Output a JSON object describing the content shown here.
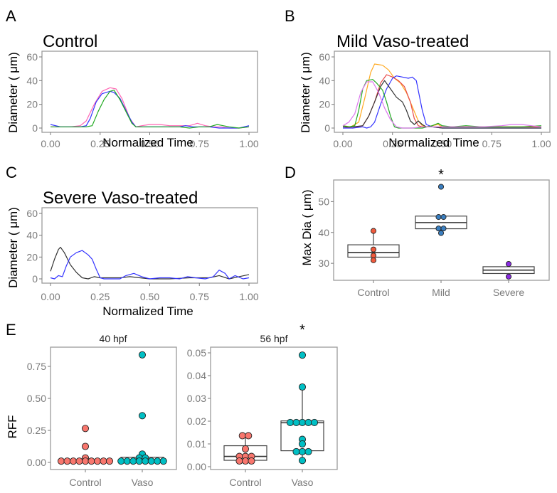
{
  "chart_data": [
    {
      "panel": "A",
      "type": "line",
      "title": "Control",
      "xlabel": "Normalized Time",
      "ylabel": "Diameter ( μm)",
      "xlim": [
        0,
        1
      ],
      "ylim": [
        0,
        60
      ],
      "xticks": [
        "0.00",
        "0.25",
        "0.50",
        "0.75",
        "1.00"
      ],
      "yticks": [
        "0",
        "20",
        "40",
        "60"
      ],
      "grid": false,
      "series": [
        {
          "name": "pink",
          "color": "#ff66b3",
          "x": [
            0,
            0.05,
            0.1,
            0.15,
            0.18,
            0.22,
            0.26,
            0.3,
            0.33,
            0.36,
            0.4,
            0.43,
            0.46,
            0.5,
            0.55,
            0.6,
            0.65,
            0.7,
            0.74,
            0.78,
            0.82,
            0.86,
            0.9,
            0.95,
            1.0
          ],
          "y": [
            1,
            1,
            1,
            2,
            6,
            20,
            31,
            34,
            33,
            25,
            8,
            1,
            2,
            3,
            3,
            2,
            2,
            2,
            4,
            2,
            1,
            1,
            0,
            0,
            1
          ]
        },
        {
          "name": "blue",
          "color": "#3333ff",
          "x": [
            0,
            0.05,
            0.1,
            0.15,
            0.18,
            0.2,
            0.23,
            0.26,
            0.3,
            0.32,
            0.35,
            0.38,
            0.41,
            0.43,
            0.46,
            0.5,
            0.55,
            0.6,
            0.65,
            0.68,
            0.72,
            0.76,
            0.8,
            0.85,
            0.9,
            0.95,
            1.0
          ],
          "y": [
            3,
            1,
            1,
            1,
            2,
            8,
            22,
            29,
            31,
            30,
            25,
            15,
            5,
            1,
            1,
            1,
            1,
            1,
            1,
            2,
            1,
            1,
            1,
            0,
            0,
            0,
            2
          ]
        },
        {
          "name": "green",
          "color": "#22aa22",
          "x": [
            0,
            0.05,
            0.1,
            0.15,
            0.18,
            0.21,
            0.24,
            0.27,
            0.3,
            0.32,
            0.35,
            0.38,
            0.41,
            0.43,
            0.46,
            0.5,
            0.55,
            0.6,
            0.65,
            0.7,
            0.75,
            0.8,
            0.84,
            0.87,
            0.9,
            0.95,
            1.0
          ],
          "y": [
            1,
            1,
            1,
            1,
            1,
            2,
            14,
            24,
            31,
            32,
            24,
            14,
            4,
            1,
            1,
            1,
            1,
            1,
            1,
            0,
            1,
            1,
            3,
            2,
            1,
            0,
            1
          ]
        }
      ]
    },
    {
      "panel": "B",
      "type": "line",
      "title": "Mild Vaso-treated",
      "xlabel": "Normalized Time",
      "ylabel": "Diameter ( μm)",
      "xlim": [
        0,
        1
      ],
      "ylim": [
        0,
        60
      ],
      "xticks": [
        "0.00",
        "0.25",
        "0.50",
        "0.75",
        "1.00"
      ],
      "yticks": [
        "0",
        "20",
        "40",
        "60"
      ],
      "grid": false,
      "series": [
        {
          "name": "orange",
          "color": "#ffaa22",
          "x": [
            0,
            0.04,
            0.08,
            0.11,
            0.14,
            0.16,
            0.2,
            0.23,
            0.26,
            0.29,
            0.32,
            0.35,
            0.38,
            0.4,
            0.42,
            0.45,
            0.48,
            0.5,
            0.55,
            0.6,
            0.7,
            0.8,
            0.9,
            1.0
          ],
          "y": [
            2,
            1,
            5,
            25,
            47,
            54,
            53,
            49,
            42,
            38,
            30,
            18,
            6,
            2,
            1,
            2,
            3,
            1,
            1,
            1,
            1,
            1,
            1,
            1
          ]
        },
        {
          "name": "red",
          "color": "#e84848",
          "x": [
            0,
            0.05,
            0.1,
            0.13,
            0.16,
            0.19,
            0.22,
            0.25,
            0.28,
            0.31,
            0.34,
            0.36,
            0.38,
            0.4,
            0.45,
            0.5,
            0.6,
            0.7,
            0.8,
            0.9,
            1.0
          ],
          "y": [
            1,
            0,
            2,
            10,
            22,
            38,
            45,
            43,
            40,
            35,
            22,
            8,
            2,
            1,
            1,
            1,
            1,
            1,
            1,
            1,
            1
          ]
        },
        {
          "name": "blue",
          "color": "#3333ff",
          "x": [
            0,
            0.05,
            0.1,
            0.12,
            0.14,
            0.16,
            0.19,
            0.22,
            0.25,
            0.27,
            0.3,
            0.33,
            0.35,
            0.37,
            0.4,
            0.42,
            0.45,
            0.5,
            0.6,
            0.7,
            0.8,
            0.9,
            1.0
          ],
          "y": [
            0,
            0,
            1,
            0,
            1,
            5,
            20,
            33,
            42,
            44,
            43,
            42,
            43,
            40,
            15,
            3,
            1,
            0,
            0,
            0,
            0,
            0,
            0
          ]
        },
        {
          "name": "black",
          "color": "#333333",
          "x": [
            0,
            0.05,
            0.1,
            0.13,
            0.16,
            0.19,
            0.21,
            0.24,
            0.27,
            0.3,
            0.32,
            0.34,
            0.36,
            0.38,
            0.4,
            0.42,
            0.45,
            0.5,
            0.6,
            0.7,
            0.8,
            0.9,
            1.0
          ],
          "y": [
            1,
            1,
            2,
            10,
            22,
            35,
            40,
            33,
            26,
            22,
            15,
            6,
            3,
            6,
            3,
            1,
            1,
            0,
            0,
            0,
            0,
            0,
            0
          ]
        },
        {
          "name": "green",
          "color": "#22aa22",
          "x": [
            0,
            0.03,
            0.06,
            0.08,
            0.1,
            0.12,
            0.15,
            0.17,
            0.2,
            0.22,
            0.24,
            0.26,
            0.28,
            0.3,
            0.35,
            0.4,
            0.45,
            0.48,
            0.5,
            0.55,
            0.62,
            0.7,
            0.8,
            0.9,
            1.0
          ],
          "y": [
            2,
            1,
            2,
            15,
            33,
            40,
            41,
            38,
            32,
            22,
            10,
            1,
            0,
            0,
            0,
            0,
            2,
            4,
            2,
            1,
            2,
            1,
            1,
            1,
            2
          ]
        },
        {
          "name": "violet",
          "color": "#dd77ee",
          "x": [
            0,
            0.03,
            0.06,
            0.09,
            0.12,
            0.15,
            0.18,
            0.21,
            0.24,
            0.27,
            0.3,
            0.35,
            0.4,
            0.5,
            0.6,
            0.7,
            0.8,
            0.85,
            0.9,
            0.95,
            1.0
          ],
          "y": [
            2,
            5,
            12,
            30,
            39,
            39,
            30,
            17,
            7,
            1,
            0,
            0,
            1,
            1,
            1,
            1,
            2,
            3,
            3,
            2,
            1
          ]
        }
      ]
    },
    {
      "panel": "C",
      "type": "line",
      "title": "Severe Vaso-treated",
      "xlabel": "Normalized Time",
      "ylabel": "Diameter ( μm)",
      "xlim": [
        0,
        1
      ],
      "ylim": [
        0,
        60
      ],
      "xticks": [
        "0.00",
        "0.25",
        "0.50",
        "0.75",
        "1.00"
      ],
      "yticks": [
        "0",
        "20",
        "40",
        "60"
      ],
      "grid": false,
      "series": [
        {
          "name": "black",
          "color": "#333333",
          "x": [
            0,
            0.02,
            0.04,
            0.05,
            0.07,
            0.1,
            0.13,
            0.16,
            0.19,
            0.22,
            0.25,
            0.3,
            0.35,
            0.4,
            0.45,
            0.5,
            0.6,
            0.7,
            0.8,
            0.85,
            0.9,
            0.95,
            1.0
          ],
          "y": [
            7,
            18,
            27,
            29,
            24,
            13,
            6,
            1,
            0,
            2,
            1,
            1,
            1,
            2,
            1,
            0,
            0,
            1,
            1,
            3,
            0,
            2,
            4
          ]
        },
        {
          "name": "blue",
          "color": "#3333ff",
          "x": [
            0,
            0.02,
            0.04,
            0.06,
            0.08,
            0.1,
            0.13,
            0.16,
            0.19,
            0.21,
            0.23,
            0.25,
            0.27,
            0.3,
            0.35,
            0.38,
            0.42,
            0.46,
            0.5,
            0.55,
            0.6,
            0.65,
            0.69,
            0.73,
            0.78,
            0.82,
            0.85,
            0.88,
            0.9,
            0.93,
            0.97,
            1.0
          ],
          "y": [
            1,
            0,
            3,
            2,
            12,
            20,
            24,
            26,
            22,
            18,
            9,
            1,
            0,
            0,
            0,
            3,
            5,
            2,
            0,
            1,
            1,
            0,
            2,
            1,
            0,
            2,
            8,
            5,
            0,
            3,
            0,
            1
          ]
        }
      ]
    },
    {
      "panel": "D",
      "type": "box",
      "title": "",
      "xlabel": "",
      "ylabel": "Max Dia ( μm)",
      "ylim": [
        24.5,
        57
      ],
      "categories": [
        "Control",
        "Mild",
        "Severe"
      ],
      "yticks": [
        "30",
        "40",
        "50"
      ],
      "annotations": [
        {
          "category": "Mild",
          "text": "*"
        }
      ],
      "groups": [
        {
          "category": "Control",
          "color": "#f05a3c",
          "q1": 32,
          "median": 33.5,
          "q3": 36,
          "whisker_low": 31,
          "whisker_high": 40.5,
          "points": [
            40.5,
            34.5,
            32.5,
            31
          ]
        },
        {
          "category": "Mild",
          "color": "#3a7ebf",
          "q1": 41.2,
          "median": 43.2,
          "q3": 45.3,
          "whisker_low": 39.8,
          "whisker_high": 45.3,
          "points": [
            54.8,
            45,
            45,
            41.3,
            41.3,
            39.8
          ]
        },
        {
          "category": "Severe",
          "color": "#8a2be2",
          "q1": 26.7,
          "median": 27.8,
          "q3": 28.9,
          "whisker_low": 25.7,
          "whisker_high": 29.8,
          "points": [
            29.8,
            25.7
          ]
        }
      ]
    },
    {
      "panel": "E",
      "type": "box",
      "ylabel": "RFF",
      "facets": [
        {
          "strip": "40 hpf",
          "ylim": [
            -0.03,
            0.9
          ],
          "yticks": [
            "0.00",
            "0.25",
            "0.50",
            "0.75"
          ],
          "categories": [
            "Control",
            "Vaso"
          ],
          "groups": [
            {
              "category": "Control",
              "color": "#f8766d",
              "q1": 0.01,
              "median": 0.01,
              "q3": 0.01,
              "points": [
                0.265,
                0.125,
                0.035,
                0.01,
                0.01,
                0.01,
                0.01,
                0.01,
                0.01,
                0.01,
                0.01,
                0.01
              ]
            },
            {
              "category": "Vaso",
              "color": "#00bfc4",
              "q1": 0.01,
              "median": 0.02,
              "q3": 0.04,
              "points": [
                0.84,
                0.365,
                0.065,
                0.035,
                0.035,
                0.01,
                0.01,
                0.01,
                0.01,
                0.01,
                0.01,
                0.01,
                0.01
              ]
            }
          ]
        },
        {
          "strip": "56 hpf",
          "annotation": "*",
          "ylim": [
            0,
            0.052
          ],
          "yticks": [
            "0.00",
            "0.01",
            "0.02",
            "0.03",
            "0.04",
            "0.05"
          ],
          "categories": [
            "Control",
            "Vaso"
          ],
          "groups": [
            {
              "category": "Control",
              "color": "#f8766d",
              "q1": 0.0028,
              "median": 0.0045,
              "q3": 0.0092,
              "whisker_high": 0.0136,
              "whisker_low": 0.0025,
              "points": [
                0.0136,
                0.0136,
                0.0078,
                0.0045,
                0.0045,
                0.0045,
                0.0025,
                0.0025,
                0.0025
              ]
            },
            {
              "category": "Vaso",
              "color": "#00bfc4",
              "q1": 0.007,
              "median": 0.0193,
              "q3": 0.0201,
              "whisker_high": 0.035,
              "whisker_low": 0.0027,
              "points": [
                0.049,
                0.035,
                0.0194,
                0.0194,
                0.0194,
                0.0194,
                0.0194,
                0.012,
                0.01,
                0.0066,
                0.0066,
                0.0066,
                0.0027
              ]
            }
          ]
        }
      ]
    }
  ]
}
